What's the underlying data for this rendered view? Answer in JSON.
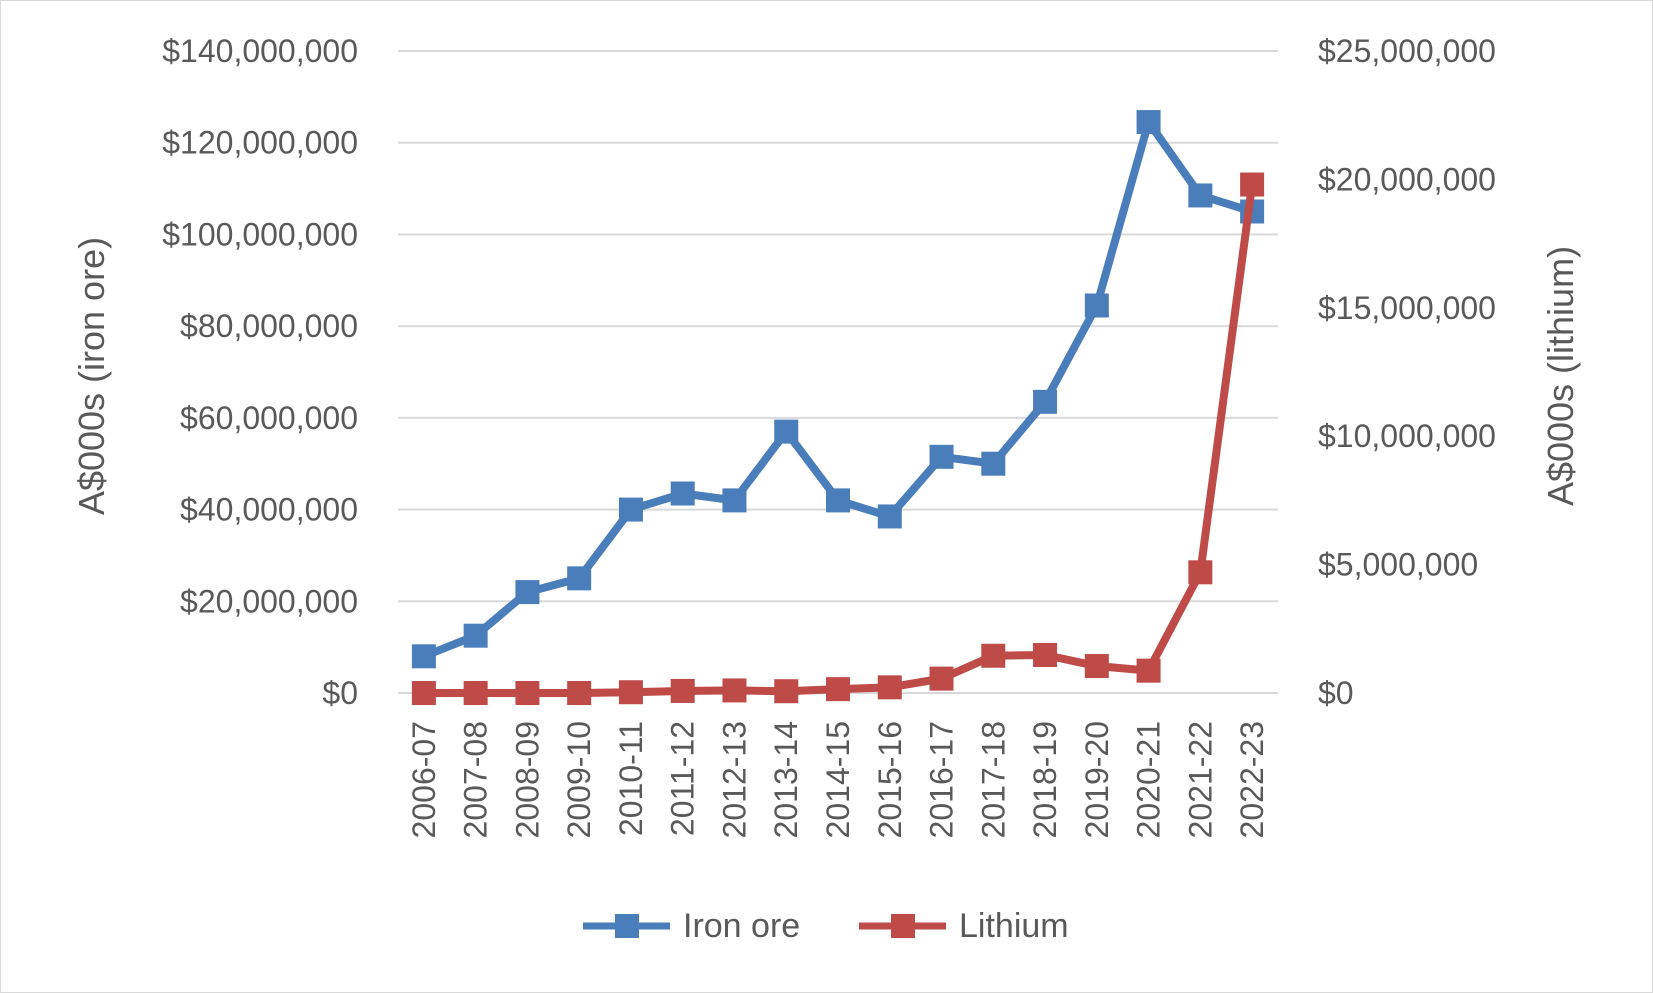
{
  "chart_data": {
    "type": "line",
    "categories": [
      "2006-07",
      "2007-08",
      "2008-09",
      "2009-10",
      "2010-11",
      "2011-12",
      "2012-13",
      "2013-14",
      "2014-15",
      "2015-16",
      "2016-17",
      "2017-18",
      "2018-19",
      "2019-20",
      "2020-21",
      "2021-22",
      "2022-23"
    ],
    "series": [
      {
        "name": "Iron ore",
        "axis": "left",
        "color": "#4a7ebb",
        "values": [
          8000000,
          12500000,
          22000000,
          25000000,
          40000000,
          43500000,
          42000000,
          57000000,
          42000000,
          38500000,
          51500000,
          50000000,
          63500000,
          84500000,
          124500000,
          108500000,
          105000000
        ]
      },
      {
        "name": "Lithium",
        "axis": "right",
        "color": "#be4b48",
        "values": [
          0,
          0,
          0,
          0,
          30000,
          80000,
          100000,
          70000,
          150000,
          220000,
          560000,
          1450000,
          1480000,
          1050000,
          870000,
          4700000,
          19800000
        ]
      }
    ],
    "y_left": {
      "label": "A$000s (iron ore)",
      "ylim": [
        0,
        140000000
      ],
      "ticks": [
        "$0",
        "$20,000,000",
        "$40,000,000",
        "$60,000,000",
        "$80,000,000",
        "$100,000,000",
        "$120,000,000",
        "$140,000,000"
      ]
    },
    "y_right": {
      "label": "A$000s (lithium)",
      "ylim": [
        0,
        25000000
      ],
      "ticks": [
        "$0",
        "$5,000,000",
        "$10,000,000",
        "$15,000,000",
        "$20,000,000",
        "$25,000,000"
      ]
    },
    "grid": true,
    "legend_position": "bottom"
  }
}
